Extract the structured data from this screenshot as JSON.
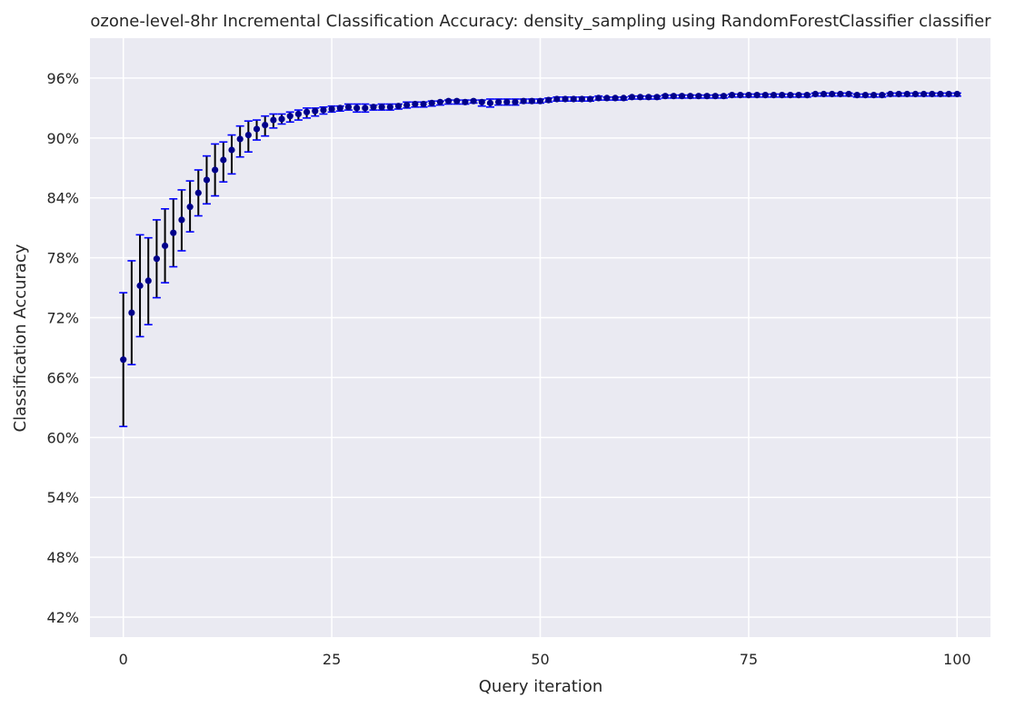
{
  "chart_data": {
    "type": "scatter",
    "title": "ozone-level-8hr Incremental Classification Accuracy: density_sampling using RandomForestClassifier classifier",
    "xlabel": "Query iteration",
    "ylabel": "Classification Accuracy",
    "xlim": [
      -4,
      104
    ],
    "ylim": [
      0.4,
      1.0
    ],
    "xticks": [
      0,
      25,
      50,
      75,
      100
    ],
    "yticks": [
      0.42,
      0.48,
      0.54,
      0.6,
      0.66,
      0.72,
      0.78,
      0.84,
      0.9,
      0.96
    ],
    "ytick_format": "percent",
    "grid": true,
    "legend": "none",
    "colors": {
      "background": "#eaeaf2",
      "grid": "#ffffff",
      "marker": "#00008b",
      "errorbar": "#000000",
      "cap": "#0000ff"
    },
    "x": [
      0,
      1,
      2,
      3,
      4,
      5,
      6,
      7,
      8,
      9,
      10,
      11,
      12,
      13,
      14,
      15,
      16,
      17,
      18,
      19,
      20,
      21,
      22,
      23,
      24,
      25,
      26,
      27,
      28,
      29,
      30,
      31,
      32,
      33,
      34,
      35,
      36,
      37,
      38,
      39,
      40,
      41,
      42,
      43,
      44,
      45,
      46,
      47,
      48,
      49,
      50,
      51,
      52,
      53,
      54,
      55,
      56,
      57,
      58,
      59,
      60,
      61,
      62,
      63,
      64,
      65,
      66,
      67,
      68,
      69,
      70,
      71,
      72,
      73,
      74,
      75,
      76,
      77,
      78,
      79,
      80,
      81,
      82,
      83,
      84,
      85,
      86,
      87,
      88,
      89,
      90,
      91,
      92,
      93,
      94,
      95,
      96,
      97,
      98,
      99,
      100
    ],
    "y": [
      0.678,
      0.725,
      0.752,
      0.757,
      0.779,
      0.792,
      0.805,
      0.818,
      0.831,
      0.845,
      0.858,
      0.868,
      0.878,
      0.888,
      0.899,
      0.903,
      0.909,
      0.913,
      0.918,
      0.919,
      0.922,
      0.924,
      0.926,
      0.927,
      0.928,
      0.929,
      0.93,
      0.931,
      0.93,
      0.93,
      0.931,
      0.931,
      0.931,
      0.932,
      0.933,
      0.934,
      0.934,
      0.935,
      0.936,
      0.937,
      0.937,
      0.936,
      0.937,
      0.936,
      0.935,
      0.936,
      0.936,
      0.936,
      0.937,
      0.937,
      0.937,
      0.938,
      0.939,
      0.939,
      0.939,
      0.939,
      0.939,
      0.94,
      0.94,
      0.94,
      0.94,
      0.941,
      0.941,
      0.941,
      0.941,
      0.942,
      0.942,
      0.942,
      0.942,
      0.942,
      0.942,
      0.942,
      0.942,
      0.943,
      0.943,
      0.943,
      0.943,
      0.943,
      0.943,
      0.943,
      0.943,
      0.943,
      0.943,
      0.944,
      0.944,
      0.944,
      0.944,
      0.944,
      0.943,
      0.943,
      0.943,
      0.943,
      0.944,
      0.944,
      0.944,
      0.944,
      0.944,
      0.944,
      0.944,
      0.944,
      0.944
    ],
    "y_upper": [
      0.745,
      0.777,
      0.803,
      0.8,
      0.818,
      0.829,
      0.839,
      0.848,
      0.857,
      0.868,
      0.882,
      0.894,
      0.896,
      0.903,
      0.912,
      0.917,
      0.918,
      0.922,
      0.924,
      0.924,
      0.926,
      0.928,
      0.93,
      0.93,
      0.931,
      0.932,
      0.932,
      0.934,
      0.934,
      0.934,
      0.933,
      0.934,
      0.934,
      0.934,
      0.936,
      0.936,
      0.936,
      0.937,
      0.937,
      0.938,
      0.938,
      0.938,
      0.938,
      0.938,
      0.939,
      0.939,
      0.939,
      0.939,
      0.939,
      0.939,
      0.939,
      0.94,
      0.941,
      0.941,
      0.941,
      0.941,
      0.941,
      0.942,
      0.941,
      0.941,
      0.941,
      0.942,
      0.942,
      0.942,
      0.942,
      0.943,
      0.943,
      0.943,
      0.943,
      0.943,
      0.943,
      0.943,
      0.943,
      0.944,
      0.944,
      0.944,
      0.944,
      0.944,
      0.944,
      0.944,
      0.944,
      0.944,
      0.944,
      0.945,
      0.945,
      0.945,
      0.945,
      0.945,
      0.944,
      0.944,
      0.944,
      0.944,
      0.945,
      0.945,
      0.945,
      0.945,
      0.945,
      0.945,
      0.945,
      0.945,
      0.945
    ],
    "y_lower": [
      0.611,
      0.673,
      0.701,
      0.713,
      0.74,
      0.755,
      0.771,
      0.787,
      0.806,
      0.822,
      0.834,
      0.842,
      0.856,
      0.864,
      0.881,
      0.886,
      0.898,
      0.902,
      0.91,
      0.914,
      0.916,
      0.918,
      0.92,
      0.922,
      0.924,
      0.926,
      0.927,
      0.928,
      0.926,
      0.926,
      0.928,
      0.928,
      0.928,
      0.929,
      0.93,
      0.931,
      0.931,
      0.932,
      0.933,
      0.934,
      0.934,
      0.934,
      0.935,
      0.932,
      0.931,
      0.933,
      0.933,
      0.933,
      0.935,
      0.935,
      0.935,
      0.936,
      0.937,
      0.937,
      0.937,
      0.937,
      0.937,
      0.938,
      0.938,
      0.938,
      0.938,
      0.939,
      0.939,
      0.939,
      0.939,
      0.94,
      0.94,
      0.94,
      0.94,
      0.94,
      0.94,
      0.94,
      0.94,
      0.941,
      0.941,
      0.941,
      0.941,
      0.941,
      0.941,
      0.941,
      0.941,
      0.941,
      0.941,
      0.942,
      0.942,
      0.942,
      0.942,
      0.942,
      0.941,
      0.941,
      0.941,
      0.941,
      0.942,
      0.942,
      0.942,
      0.942,
      0.942,
      0.942,
      0.942,
      0.942,
      0.942
    ]
  }
}
